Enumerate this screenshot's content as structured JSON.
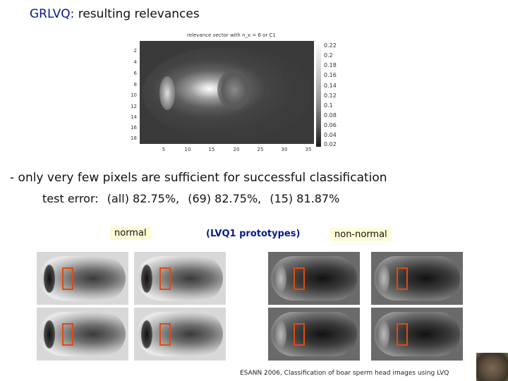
{
  "slide": {
    "title_keyword": "GRLVQ:",
    "title_rest": "resulting relevances"
  },
  "heatmap": {
    "title": "relevance vector with n_x = 6 or C1",
    "yticks": [
      "2",
      "4",
      "6",
      "8",
      "10",
      "12",
      "14",
      "16",
      "18"
    ],
    "xticks": [
      "5",
      "10",
      "15",
      "20",
      "25",
      "30",
      "35"
    ],
    "colorbar_ticks": [
      "0.22",
      "0.2",
      "0.18",
      "0.16",
      "0.14",
      "0.12",
      "0.1",
      "0.08",
      "0.06",
      "0.04",
      "0.02"
    ]
  },
  "bullet": {
    "text": "- only very few pixels are sufficient for successful classification",
    "error_label": "test error:",
    "errors": [
      "(all) 82.75%,",
      "(69) 82.75%,",
      "(15) 81.87%"
    ]
  },
  "labels": {
    "normal": "normal",
    "lvq": "(LVQ1 prototypes)",
    "non_normal": "non-normal"
  },
  "footer": "ESANN 2006, Classification of boar sperm head images using LVQ"
}
